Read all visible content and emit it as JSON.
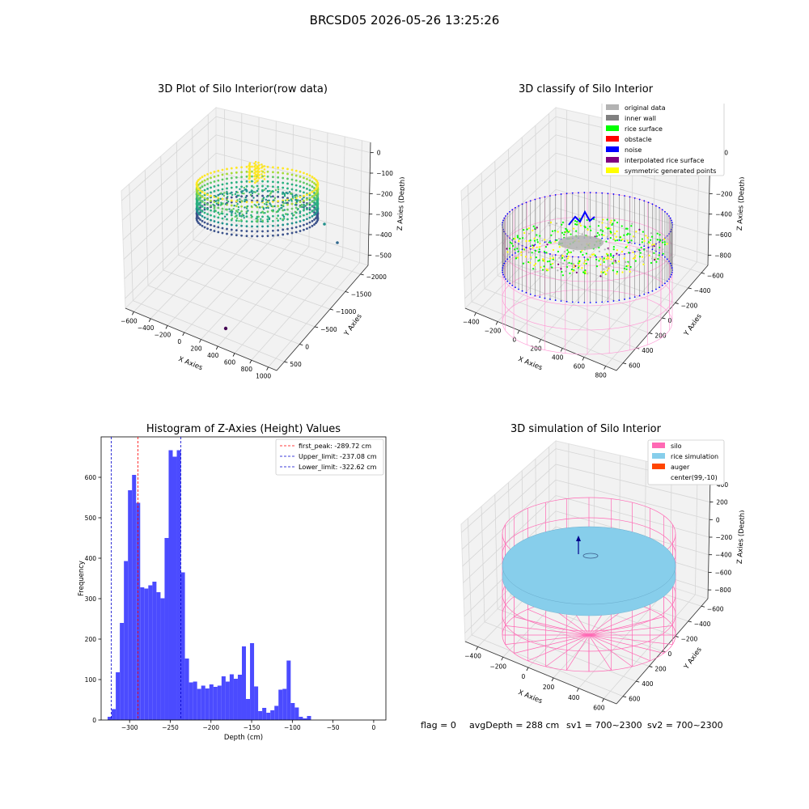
{
  "figure": {
    "suptitle": "BRCSD05 2026-05-26 13:25:26",
    "status": {
      "flag": "flag = 0",
      "avg_depth": "avgDepth = 288 cm",
      "sv1": "sv1 = 700~2300",
      "sv2": "sv2 = 700~2300"
    }
  },
  "colors": {
    "histogram_bar": "#4b4bff",
    "first_peak_line": "#ff0000",
    "limit_lines": "#0000cc",
    "original_data": "#b3b3b3",
    "inner_wall": "#808080",
    "rice_surface": "#00ff00",
    "obstacle": "#ff0000",
    "noise": "#0000ff",
    "interpolated_rice_surface": "#800080",
    "symmetric_generated_points": "#ffff00",
    "silo": "#ff69b4",
    "rice_simulation": "#87ceeb",
    "auger": "#ff4500"
  },
  "chart_data": [
    {
      "type": "scatter",
      "title": "3D Plot of Silo Interior(row data)",
      "xlabel": "X Axies",
      "ylabel": "Y Axies",
      "zlabel": "Z Axies (Depth)",
      "x_ticks": [
        "−600",
        "−400",
        "−200",
        "0",
        "200",
        "400",
        "600",
        "800",
        "1000"
      ],
      "y_ticks": [
        "500",
        "0",
        "−500",
        "−1000",
        "−1500",
        "−2000"
      ],
      "z_ticks": [
        "0",
        "−100",
        "−200",
        "−300",
        "−400",
        "−500"
      ],
      "xlim": [
        -650,
        1000
      ],
      "ylim": [
        -2000,
        600
      ],
      "zlim": [
        -550,
        30
      ],
      "colormap": "viridis"
    },
    {
      "type": "scatter",
      "title": "3D classify of Silo Interior",
      "xlabel": "X Axies",
      "ylabel": "Y Axies",
      "zlabel": "Z Axies (Depth)",
      "x_ticks": [
        "−400",
        "−200",
        "0",
        "200",
        "400",
        "600",
        "800"
      ],
      "y_ticks": [
        "600",
        "400",
        "200",
        "0",
        "−200",
        "−400",
        "−600"
      ],
      "z_ticks": [
        "200",
        "0",
        "−200",
        "−400",
        "−600",
        "−800"
      ],
      "xlim": [
        -500,
        800
      ],
      "ylim": [
        -650,
        650
      ],
      "zlim": [
        -900,
        250
      ],
      "legend_position": "upper right",
      "legend": [
        "original data",
        "inner wall",
        "rice surface",
        "obstacle",
        "noise",
        "interpolated rice surface",
        "symmetric generated points"
      ]
    },
    {
      "type": "bar",
      "title": "Histogram of Z-Axies (Height) Values",
      "xlabel": "Depth (cm)",
      "ylabel": "Frequency",
      "xlim": [
        -335,
        15
      ],
      "ylim": [
        0,
        700
      ],
      "bin_start": -327,
      "bin_width": 5,
      "values": [
        8,
        27,
        118,
        240,
        393,
        568,
        606,
        537,
        328,
        325,
        333,
        342,
        316,
        301,
        450,
        667,
        651,
        667,
        365,
        152,
        93,
        95,
        77,
        85,
        78,
        88,
        82,
        85,
        108,
        95,
        113,
        102,
        112,
        182,
        52,
        190,
        83,
        22,
        30,
        18,
        24,
        35,
        75,
        77,
        147,
        42,
        31,
        8,
        4,
        10
      ],
      "x_ticks": [
        -300,
        -250,
        -200,
        -150,
        -100,
        -50,
        0
      ],
      "y_ticks": [
        0,
        100,
        200,
        300,
        400,
        500,
        600
      ],
      "grid": false,
      "legend_position": "upper right",
      "lines": [
        {
          "label": "first_peak: -289.72 cm",
          "x": -289.72
        },
        {
          "label": "Upper_limit: -237.08 cm",
          "x": -237.08
        },
        {
          "label": "Lower_limit: -322.62 cm",
          "x": -322.62
        }
      ]
    },
    {
      "type": "scatter",
      "title": "3D simulation of Silo Interior",
      "xlabel": "X Axies",
      "ylabel": "Y Axies",
      "zlabel": "Z Axies (Depth)",
      "x_ticks": [
        "−400",
        "−200",
        "0",
        "200",
        "400",
        "600"
      ],
      "y_ticks": [
        "600",
        "400",
        "200",
        "0",
        "−200",
        "−400",
        "−600"
      ],
      "z_ticks": [
        "400",
        "200",
        "0",
        "−200",
        "−400",
        "−600",
        "−800"
      ],
      "xlim": [
        -500,
        700
      ],
      "ylim": [
        -650,
        650
      ],
      "zlim": [
        -900,
        450
      ],
      "legend_position": "upper right",
      "legend": [
        "silo",
        "rice simulation",
        "auger",
        "center(99,-10)"
      ]
    }
  ]
}
